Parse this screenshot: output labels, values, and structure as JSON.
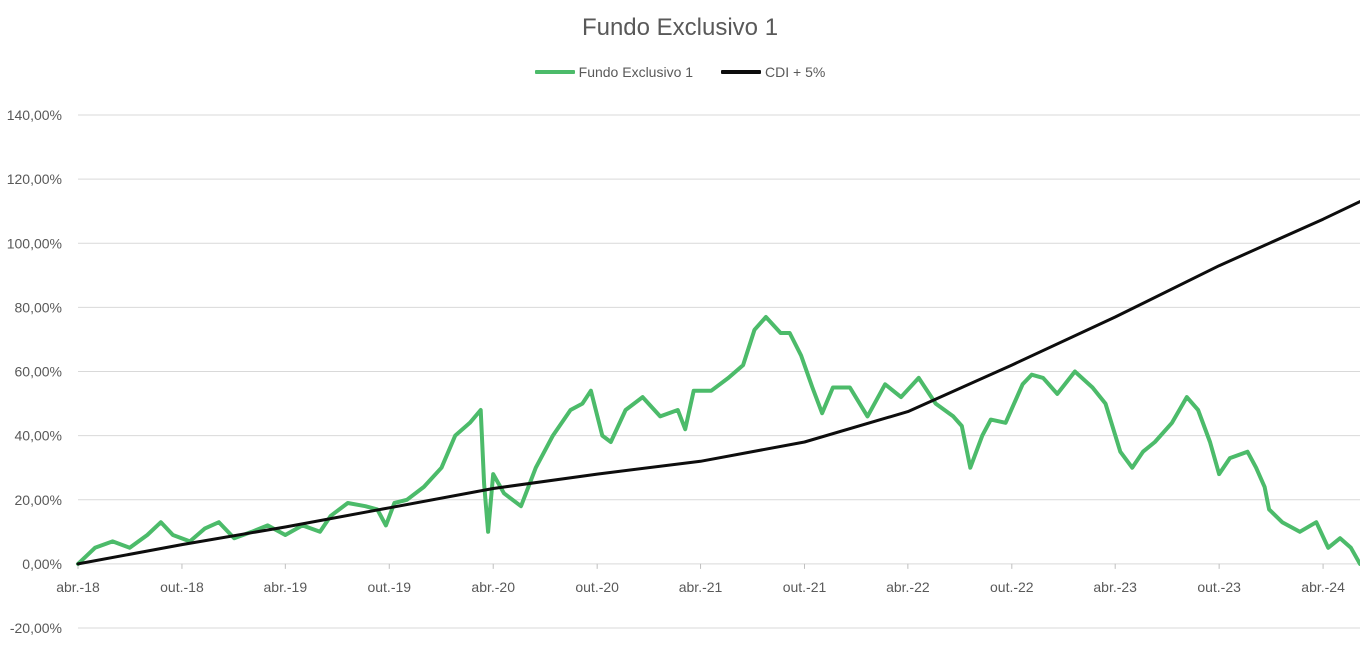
{
  "chart_data": {
    "type": "line",
    "title": "Fundo Exclusivo 1",
    "xlabel": "",
    "ylabel": "",
    "ylim": [
      -20,
      140
    ],
    "y_ticks": [
      "-20,00%",
      "0,00%",
      "20,00%",
      "40,00%",
      "60,00%",
      "80,00%",
      "100,00%",
      "120,00%",
      "140,00%"
    ],
    "x_ticks": [
      "abr.-18",
      "out.-18",
      "abr.-19",
      "out.-19",
      "abr.-20",
      "out.-20",
      "abr.-21",
      "out.-21",
      "abr.-22",
      "out.-22",
      "abr.-23",
      "out.-23",
      "abr.-24"
    ],
    "grid": true,
    "legend_position": "top-center",
    "series": [
      {
        "name": "Fundo Exclusivo 1",
        "color": "#4cbb6a",
        "points": [
          [
            "2018-04-01",
            0
          ],
          [
            "2018-05-01",
            5
          ],
          [
            "2018-06-01",
            7
          ],
          [
            "2018-07-01",
            5
          ],
          [
            "2018-08-01",
            9
          ],
          [
            "2018-08-25",
            13
          ],
          [
            "2018-09-15",
            9
          ],
          [
            "2018-10-15",
            7
          ],
          [
            "2018-11-10",
            11
          ],
          [
            "2018-12-05",
            13
          ],
          [
            "2019-01-01",
            8
          ],
          [
            "2019-02-01",
            10
          ],
          [
            "2019-03-01",
            12
          ],
          [
            "2019-04-01",
            9
          ],
          [
            "2019-05-01",
            12
          ],
          [
            "2019-06-01",
            10
          ],
          [
            "2019-06-20",
            15
          ],
          [
            "2019-07-20",
            19
          ],
          [
            "2019-08-20",
            18
          ],
          [
            "2019-09-10",
            17
          ],
          [
            "2019-09-25",
            12
          ],
          [
            "2019-10-10",
            19
          ],
          [
            "2019-11-01",
            20
          ],
          [
            "2019-12-01",
            24
          ],
          [
            "2020-01-01",
            30
          ],
          [
            "2020-01-25",
            40
          ],
          [
            "2020-02-20",
            44
          ],
          [
            "2020-03-10",
            48
          ],
          [
            "2020-03-16",
            25
          ],
          [
            "2020-03-23",
            10
          ],
          [
            "2020-04-01",
            28
          ],
          [
            "2020-04-20",
            22
          ],
          [
            "2020-05-20",
            18
          ],
          [
            "2020-06-15",
            30
          ],
          [
            "2020-07-15",
            40
          ],
          [
            "2020-08-15",
            48
          ],
          [
            "2020-09-05",
            50
          ],
          [
            "2020-09-20",
            54
          ],
          [
            "2020-10-10",
            40
          ],
          [
            "2020-10-25",
            38
          ],
          [
            "2020-11-20",
            48
          ],
          [
            "2020-12-20",
            52
          ],
          [
            "2021-01-20",
            46
          ],
          [
            "2021-02-20",
            48
          ],
          [
            "2021-03-05",
            42
          ],
          [
            "2021-03-20",
            54
          ],
          [
            "2021-04-20",
            54
          ],
          [
            "2021-05-20",
            58
          ],
          [
            "2021-06-15",
            62
          ],
          [
            "2021-07-05",
            73
          ],
          [
            "2021-07-25",
            77
          ],
          [
            "2021-08-20",
            72
          ],
          [
            "2021-09-05",
            72
          ],
          [
            "2021-09-25",
            65
          ],
          [
            "2021-10-15",
            55
          ],
          [
            "2021-11-01",
            47
          ],
          [
            "2021-11-20",
            55
          ],
          [
            "2021-12-20",
            55
          ],
          [
            "2022-01-20",
            46
          ],
          [
            "2022-02-20",
            56
          ],
          [
            "2022-03-20",
            52
          ],
          [
            "2022-04-20",
            58
          ],
          [
            "2022-05-20",
            50
          ],
          [
            "2022-06-20",
            46
          ],
          [
            "2022-07-05",
            43
          ],
          [
            "2022-07-20",
            30
          ],
          [
            "2022-08-10",
            40
          ],
          [
            "2022-08-25",
            45
          ],
          [
            "2022-09-20",
            44
          ],
          [
            "2022-10-20",
            56
          ],
          [
            "2022-11-05",
            59
          ],
          [
            "2022-11-25",
            58
          ],
          [
            "2022-12-20",
            53
          ],
          [
            "2023-01-20",
            60
          ],
          [
            "2023-02-20",
            55
          ],
          [
            "2023-03-15",
            50
          ],
          [
            "2023-04-10",
            35
          ],
          [
            "2023-05-01",
            30
          ],
          [
            "2023-05-20",
            35
          ],
          [
            "2023-06-10",
            38
          ],
          [
            "2023-07-10",
            44
          ],
          [
            "2023-08-05",
            52
          ],
          [
            "2023-08-25",
            48
          ],
          [
            "2023-09-15",
            38
          ],
          [
            "2023-10-01",
            28
          ],
          [
            "2023-10-20",
            33
          ],
          [
            "2023-11-20",
            35
          ],
          [
            "2023-12-05",
            30
          ],
          [
            "2023-12-20",
            24
          ],
          [
            "2023-12-28",
            17
          ],
          [
            "2024-01-20",
            13
          ],
          [
            "2024-02-20",
            10
          ],
          [
            "2024-03-20",
            13
          ],
          [
            "2024-04-10",
            5
          ],
          [
            "2024-05-01",
            8
          ],
          [
            "2024-05-20",
            5
          ],
          [
            "2024-06-05",
            0
          ]
        ]
      },
      {
        "name": "CDI + 5%",
        "color": "#0d0d0d",
        "points": [
          [
            "2018-04-01",
            0
          ],
          [
            "2018-10-01",
            6
          ],
          [
            "2019-04-01",
            11.5
          ],
          [
            "2019-10-01",
            17.5
          ],
          [
            "2020-04-01",
            23.5
          ],
          [
            "2020-10-01",
            28
          ],
          [
            "2021-04-01",
            32
          ],
          [
            "2021-10-01",
            38
          ],
          [
            "2022-04-01",
            47.5
          ],
          [
            "2022-10-01",
            62
          ],
          [
            "2023-04-01",
            77
          ],
          [
            "2023-10-01",
            93
          ],
          [
            "2024-04-01",
            107.5
          ],
          [
            "2024-06-05",
            113
          ]
        ]
      }
    ]
  }
}
